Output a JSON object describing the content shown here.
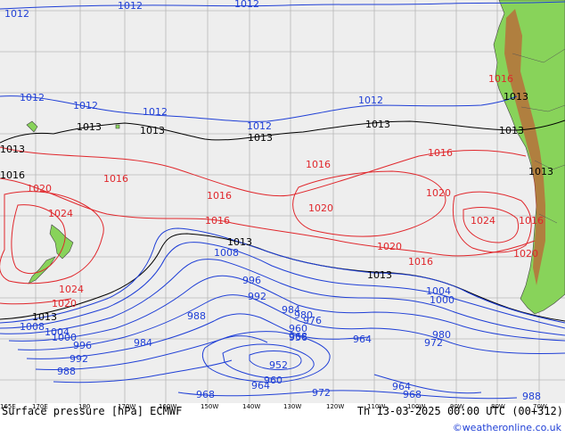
{
  "map": {
    "colors": {
      "ocean": "#eeeeee",
      "land": "#88d35a",
      "grid": "#b8b8b8",
      "isobar_low": "#1f3fd6",
      "isobar_high": "#e0262b",
      "isobar_mid": "#000000"
    },
    "longitude_ticks": [
      "165E",
      "170E",
      "180",
      "170W",
      "160W",
      "150W",
      "140W",
      "130W",
      "120W",
      "110W",
      "100W",
      "90W",
      "80W",
      "70W"
    ],
    "isobar_labels": [
      {
        "text": "1012",
        "color": "blue"
      },
      {
        "text": "1012",
        "color": "blue"
      },
      {
        "text": "1012",
        "color": "blue"
      },
      {
        "text": "1012",
        "color": "blue"
      },
      {
        "text": "1012",
        "color": "blue"
      },
      {
        "text": "1012",
        "color": "blue"
      },
      {
        "text": "1012",
        "color": "blue"
      },
      {
        "text": "1012",
        "color": "blue"
      },
      {
        "text": "1013",
        "color": "black"
      },
      {
        "text": "1013",
        "color": "black"
      },
      {
        "text": "1013",
        "color": "black"
      },
      {
        "text": "1013",
        "color": "black"
      },
      {
        "text": "1013",
        "color": "black"
      },
      {
        "text": "1013",
        "color": "black"
      },
      {
        "text": "1013",
        "color": "black"
      },
      {
        "text": "1013",
        "color": "black"
      },
      {
        "text": "1013",
        "color": "black"
      },
      {
        "text": "1013",
        "color": "black"
      },
      {
        "text": "1013",
        "color": "black"
      },
      {
        "text": "1016",
        "color": "red"
      },
      {
        "text": "1016",
        "color": "red"
      },
      {
        "text": "1016",
        "color": "red"
      },
      {
        "text": "1016",
        "color": "red"
      },
      {
        "text": "1016",
        "color": "red"
      },
      {
        "text": "1016",
        "color": "red"
      },
      {
        "text": "1016",
        "color": "red"
      },
      {
        "text": "1016",
        "color": "red"
      },
      {
        "text": "1020",
        "color": "red"
      },
      {
        "text": "1020",
        "color": "red"
      },
      {
        "text": "1020",
        "color": "red"
      },
      {
        "text": "1020",
        "color": "red"
      },
      {
        "text": "1020",
        "color": "red"
      },
      {
        "text": "1020",
        "color": "red"
      },
      {
        "text": "1024",
        "color": "red"
      },
      {
        "text": "1024",
        "color": "red"
      },
      {
        "text": "1024",
        "color": "red"
      },
      {
        "text": "1008",
        "color": "blue"
      },
      {
        "text": "1008",
        "color": "blue"
      },
      {
        "text": "1004",
        "color": "blue"
      },
      {
        "text": "1004",
        "color": "blue"
      },
      {
        "text": "1000",
        "color": "blue"
      },
      {
        "text": "1000",
        "color": "blue"
      },
      {
        "text": "996",
        "color": "blue"
      },
      {
        "text": "996",
        "color": "blue"
      },
      {
        "text": "992",
        "color": "blue"
      },
      {
        "text": "992",
        "color": "blue"
      },
      {
        "text": "988",
        "color": "blue"
      },
      {
        "text": "988",
        "color": "blue"
      },
      {
        "text": "988",
        "color": "blue"
      },
      {
        "text": "984",
        "color": "blue"
      },
      {
        "text": "984",
        "color": "blue"
      },
      {
        "text": "980",
        "color": "blue"
      },
      {
        "text": "980",
        "color": "blue"
      },
      {
        "text": "976",
        "color": "blue"
      },
      {
        "text": "972",
        "color": "blue"
      },
      {
        "text": "972",
        "color": "blue"
      },
      {
        "text": "968",
        "color": "blue"
      },
      {
        "text": "968",
        "color": "blue"
      },
      {
        "text": "968",
        "color": "blue"
      },
      {
        "text": "964",
        "color": "blue"
      },
      {
        "text": "964",
        "color": "blue"
      },
      {
        "text": "964",
        "color": "blue"
      },
      {
        "text": "960",
        "color": "blue"
      },
      {
        "text": "956",
        "color": "blue"
      },
      {
        "text": "952",
        "color": "blue"
      },
      {
        "text": "960",
        "color": "blue"
      }
    ]
  },
  "footer": {
    "title": "Surface pressure [hPa] ECMWF",
    "valid_time": "Th 13-03-2025 00:00 UTC (00+312)",
    "credit": "©weatheronline.co.uk"
  }
}
